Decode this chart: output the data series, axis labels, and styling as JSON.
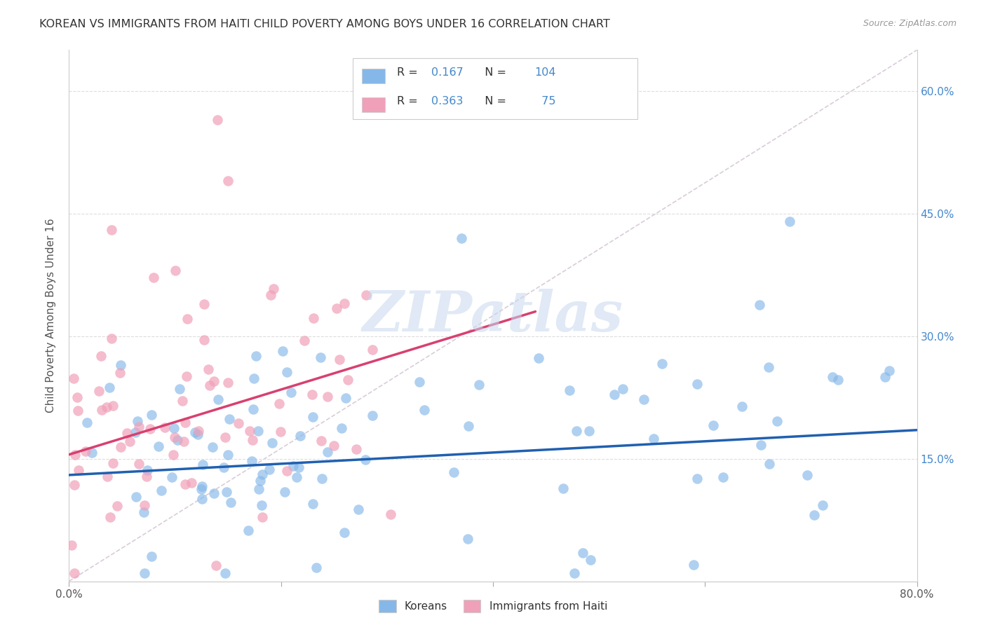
{
  "title": "KOREAN VS IMMIGRANTS FROM HAITI CHILD POVERTY AMONG BOYS UNDER 16 CORRELATION CHART",
  "source": "Source: ZipAtlas.com",
  "ylabel": "Child Poverty Among Boys Under 16",
  "ytick_vals": [
    0.15,
    0.3,
    0.45,
    0.6
  ],
  "xlim": [
    0.0,
    0.8
  ],
  "ylim": [
    0.0,
    0.65
  ],
  "watermark": "ZIPatlas",
  "koreans": {
    "R": 0.167,
    "N": 104,
    "color": "#85b8e8",
    "line_color": "#2060b0",
    "trend_start_y": 0.13,
    "trend_end_y": 0.185
  },
  "haiti": {
    "R": 0.363,
    "N": 75,
    "color": "#f0a0b8",
    "line_color": "#d84070",
    "trend_start_y": 0.155,
    "trend_end_y": 0.33,
    "trend_end_x": 0.44
  },
  "diag_line_color": "#c8b8c8",
  "grid_color": "#dddddd",
  "random_seed": 42
}
